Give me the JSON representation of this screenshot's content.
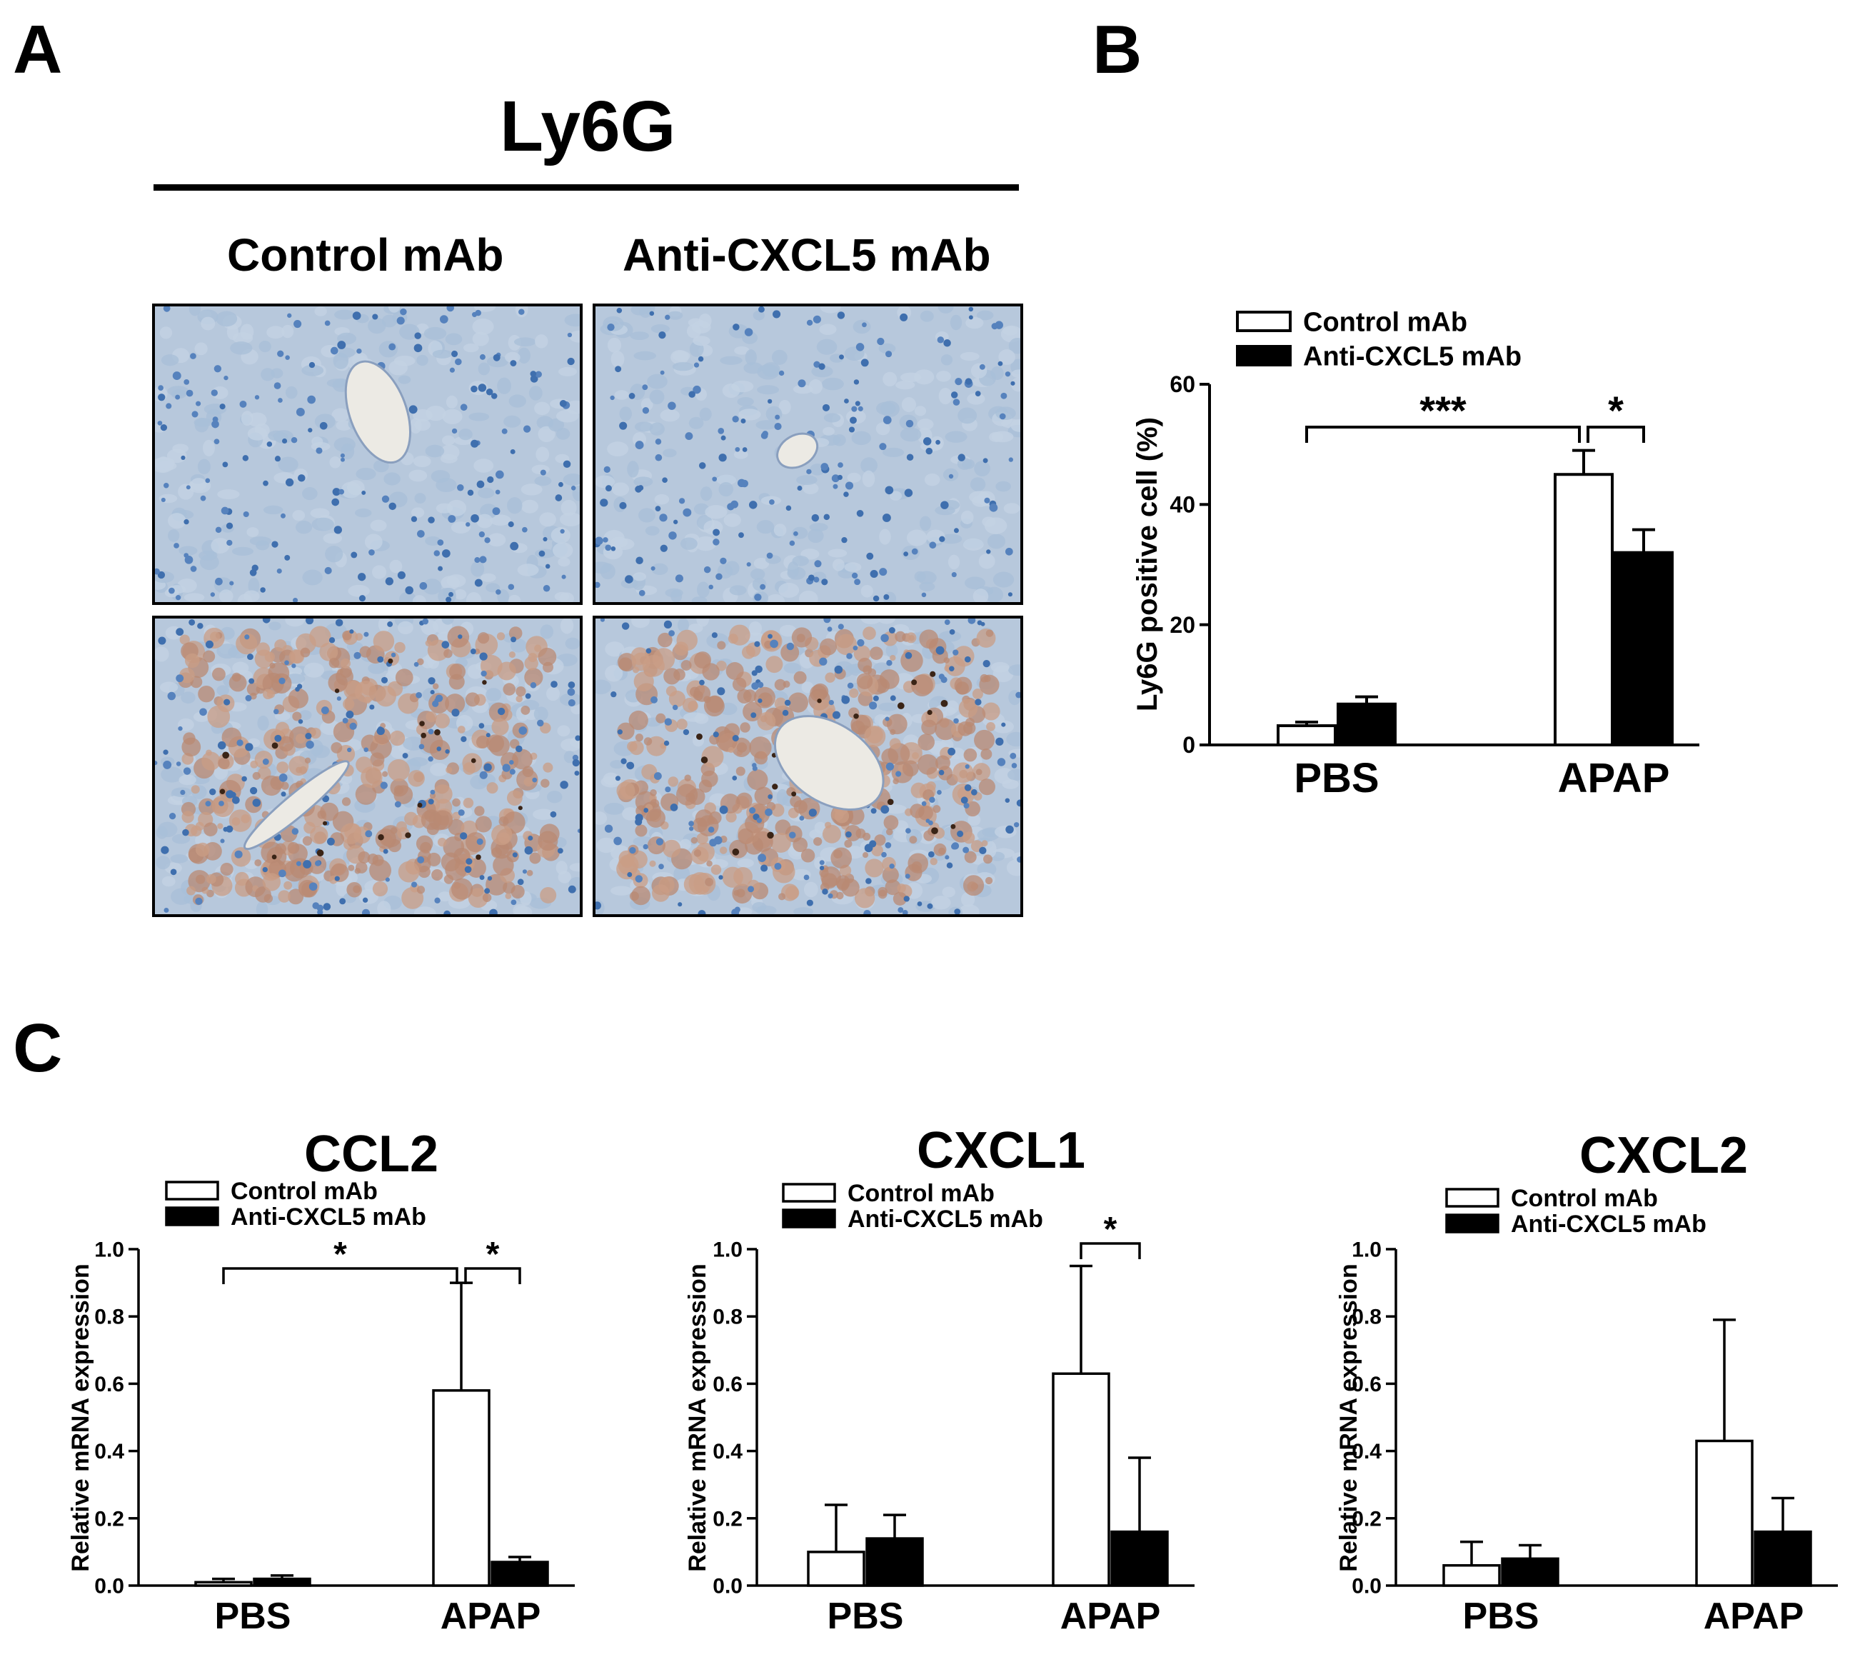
{
  "panels": {
    "a_label": "A",
    "b_label": "B",
    "c_label": "C"
  },
  "panel_a": {
    "title": "Ly6G",
    "columns": [
      "Control mAb",
      "Anti-CXCL5 mAb"
    ],
    "images": [
      {
        "name": "micrograph-control-pbs",
        "stain": "blue"
      },
      {
        "name": "micrograph-anti-pbs",
        "stain": "blue"
      },
      {
        "name": "micrograph-control-apap",
        "stain": "brown"
      },
      {
        "name": "micrograph-anti-apap",
        "stain": "brown"
      }
    ]
  },
  "colors": {
    "control": "#ffffff",
    "anti": "#000000",
    "outline": "#000000"
  },
  "chart_data": [
    {
      "type": "bar",
      "panel": "B",
      "title": "",
      "categories": [
        "PBS",
        "APAP"
      ],
      "ylabel": "Ly6G positive cell (%)",
      "ylim": [
        0,
        60
      ],
      "yticks": [
        0,
        20,
        40,
        60
      ],
      "series": [
        {
          "name": "Control mAb",
          "values": [
            3.2,
            45.0
          ],
          "errors": [
            0.6,
            4.0
          ]
        },
        {
          "name": "Anti-CXCL5 mAb",
          "values": [
            6.8,
            32.0
          ],
          "errors": [
            1.2,
            3.8
          ]
        }
      ],
      "significance": [
        {
          "label": "***",
          "between": "PBS Control mAb - APAP Control mAb"
        },
        {
          "label": "*",
          "between": "APAP Control mAb - APAP Anti-CXCL5 mAb"
        }
      ],
      "legend": "top-left"
    },
    {
      "type": "bar",
      "panel": "C",
      "title": "CCL2",
      "categories": [
        "PBS",
        "APAP"
      ],
      "ylabel": "Relative mRNA expression",
      "ylim": [
        0,
        1.0
      ],
      "yticks": [
        "0.0",
        "0.2",
        "0.4",
        "0.6",
        "0.8",
        "1.0"
      ],
      "series": [
        {
          "name": "Control mAb",
          "values": [
            0.01,
            0.58
          ],
          "errors": [
            0.01,
            0.32
          ]
        },
        {
          "name": "Anti-CXCL5 mAb",
          "values": [
            0.02,
            0.07
          ],
          "errors": [
            0.01,
            0.015
          ]
        }
      ],
      "significance": [
        {
          "label": "*",
          "between": "PBS Control mAb - APAP Control mAb"
        },
        {
          "label": "*",
          "between": "APAP Control mAb - APAP Anti-CXCL5 mAb"
        }
      ],
      "legend": "top-left"
    },
    {
      "type": "bar",
      "panel": "C",
      "title": "CXCL1",
      "categories": [
        "PBS",
        "APAP"
      ],
      "ylabel": "Relative mRNA expression",
      "ylim": [
        0,
        1.0
      ],
      "yticks": [
        "0.0",
        "0.2",
        "0.4",
        "0.6",
        "0.8",
        "1.0"
      ],
      "series": [
        {
          "name": "Control mAb",
          "values": [
            0.1,
            0.63
          ],
          "errors": [
            0.14,
            0.32
          ]
        },
        {
          "name": "Anti-CXCL5 mAb",
          "values": [
            0.14,
            0.16
          ],
          "errors": [
            0.07,
            0.22
          ]
        }
      ],
      "significance": [
        {
          "label": "*",
          "between": "APAP Control mAb - APAP Anti-CXCL5 mAb"
        }
      ],
      "legend": "top-left"
    },
    {
      "type": "bar",
      "panel": "C",
      "title": "CXCL2",
      "categories": [
        "PBS",
        "APAP"
      ],
      "ylabel": "Relative mRNA expression",
      "ylim": [
        0,
        1.0
      ],
      "yticks": [
        "0.0",
        "0.2",
        "0.4",
        "0.6",
        "0.8",
        "1.0"
      ],
      "series": [
        {
          "name": "Control mAb",
          "values": [
            0.06,
            0.43
          ],
          "errors": [
            0.07,
            0.36
          ]
        },
        {
          "name": "Anti-CXCL5 mAb",
          "values": [
            0.08,
            0.16
          ],
          "errors": [
            0.04,
            0.1
          ]
        }
      ],
      "significance": [],
      "legend": "top-left"
    }
  ]
}
